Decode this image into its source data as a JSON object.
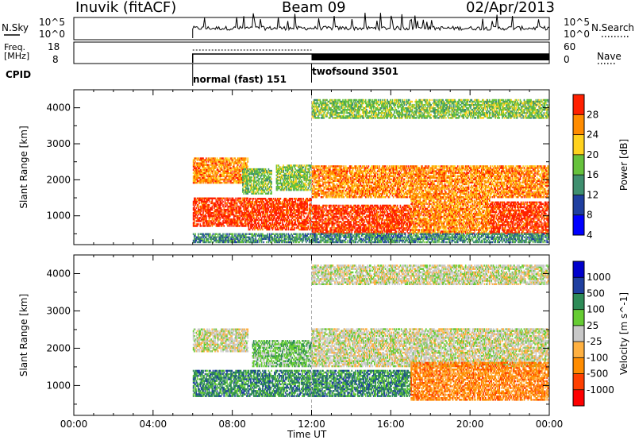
{
  "header": {
    "station": "Inuvik (fitACF)",
    "beam": "Beam 09",
    "date": "02/Apr/2013"
  },
  "info_panels": {
    "nsky_label": "N.Sky",
    "nsky_ticks": [
      "10^5",
      "10^0"
    ],
    "nsearch_label": "N.Search",
    "nsearch_ticks": [
      "10^5",
      "10^0"
    ],
    "freq_label_1": "Freq.",
    "freq_label_2": "[MHz]",
    "freq_ticks": [
      "18",
      "8"
    ],
    "nave_label": "Nave",
    "nave_ticks": [
      "60",
      "0"
    ],
    "cpid_label": "CPID",
    "cpid_segments": [
      {
        "name": "normal (fast) 151",
        "start_hour": 6.0,
        "end_hour": 12.0
      },
      {
        "name": "twofsound 3501",
        "start_hour": 12.0,
        "end_hour": 24.0
      }
    ]
  },
  "chart_data": [
    {
      "type": "heatmap",
      "title": "",
      "xlabel": "Time UT",
      "ylabel": "Slant Range [km]",
      "xlim_hours": [
        0,
        24
      ],
      "x_ticks": [
        "00:00",
        "04:00",
        "08:00",
        "12:00",
        "16:00",
        "20:00",
        "00:00"
      ],
      "ylim": [
        200,
        4500
      ],
      "y_ticks": [
        1000,
        2000,
        3000,
        4000
      ],
      "colorbar_label": "Power [dB]",
      "colorbar_ticks": [
        "28",
        "24",
        "20",
        "16",
        "12",
        "8",
        "4"
      ],
      "colorbar_colors": [
        "#0000ff",
        "#1f3fa0",
        "#3f8f6f",
        "#66c23c",
        "#ffd21e",
        "#ff8c00",
        "#ff2000"
      ],
      "data_start_hour": 6.0,
      "regions": [
        {
          "t": [
            6.0,
            8.8
          ],
          "r": [
            700,
            1500
          ],
          "level": 6
        },
        {
          "t": [
            6.0,
            8.8
          ],
          "r": [
            1900,
            2600
          ],
          "level": 5
        },
        {
          "t": [
            8.8,
            12.0
          ],
          "r": [
            600,
            1500
          ],
          "level": 6
        },
        {
          "t": [
            8.5,
            10.0
          ],
          "r": [
            1600,
            2300
          ],
          "level": 3
        },
        {
          "t": [
            10.2,
            12.0
          ],
          "r": [
            1700,
            2400
          ],
          "level": 3
        },
        {
          "t": [
            12.0,
            17.0
          ],
          "r": [
            500,
            1300
          ],
          "level": 6
        },
        {
          "t": [
            12.0,
            24.0
          ],
          "r": [
            1500,
            2400
          ],
          "level": 5
        },
        {
          "t": [
            17.0,
            21.0
          ],
          "r": [
            500,
            1500
          ],
          "level": 5
        },
        {
          "t": [
            21.0,
            24.0
          ],
          "r": [
            500,
            1400
          ],
          "level": 6
        },
        {
          "t": [
            12.0,
            24.0
          ],
          "r": [
            3700,
            4200
          ],
          "level": 3
        },
        {
          "t": [
            6.0,
            24.0
          ],
          "r": [
            250,
            500
          ],
          "level": 2
        }
      ]
    },
    {
      "type": "heatmap",
      "title": "",
      "xlabel": "Time UT",
      "ylabel": "Slant Range [km]",
      "xlim_hours": [
        0,
        24
      ],
      "x_ticks": [
        "00:00",
        "04:00",
        "08:00",
        "12:00",
        "16:00",
        "20:00",
        "00:00"
      ],
      "ylim": [
        200,
        4500
      ],
      "y_ticks": [
        1000,
        2000,
        3000,
        4000
      ],
      "colorbar_label": "Velocity [m s^-1]",
      "colorbar_ticks": [
        "1000",
        "500",
        "100",
        "25",
        "-25",
        "-100",
        "-500",
        "-1000"
      ],
      "colorbar_colors": [
        "#ff0000",
        "#ff4000",
        "#ff8c00",
        "#ffb040",
        "#c8c8c8",
        "#66cc33",
        "#2e8b57",
        "#1f3fa0",
        "#0000cc"
      ],
      "data_start_hour": 6.0,
      "regions": [
        {
          "t": [
            6.0,
            8.8
          ],
          "r": [
            700,
            1400
          ],
          "level": 6
        },
        {
          "t": [
            6.0,
            8.8
          ],
          "r": [
            1900,
            2500
          ],
          "level": 4
        },
        {
          "t": [
            8.8,
            12.0
          ],
          "r": [
            700,
            1400
          ],
          "level": 6
        },
        {
          "t": [
            9.0,
            12.0
          ],
          "r": [
            1500,
            2200
          ],
          "level": 5
        },
        {
          "t": [
            12.0,
            17.0
          ],
          "r": [
            700,
            1400
          ],
          "level": 6
        },
        {
          "t": [
            12.0,
            24.0
          ],
          "r": [
            1500,
            2500
          ],
          "level": 4
        },
        {
          "t": [
            17.0,
            24.0
          ],
          "r": [
            600,
            1600
          ],
          "level": 2
        },
        {
          "t": [
            12.0,
            24.0
          ],
          "r": [
            3700,
            4200
          ],
          "level": 4
        }
      ]
    }
  ]
}
